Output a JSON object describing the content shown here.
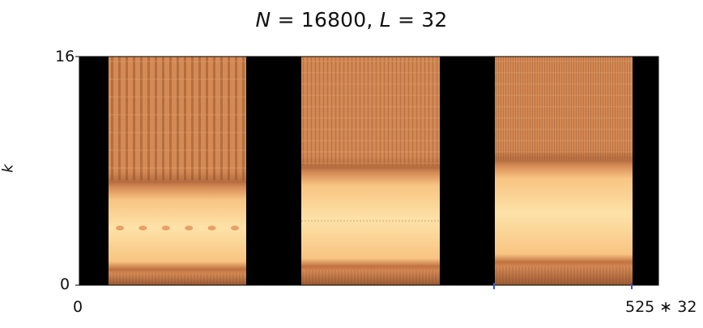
{
  "chart_data": {
    "type": "heatmap",
    "title": "N = 16800, L = 32",
    "title_parts": [
      {
        "text": "N",
        "italic": true
      },
      {
        "text": " = 16800, ",
        "italic": false
      },
      {
        "text": "L",
        "italic": true
      },
      {
        "text": " = 32",
        "italic": false
      }
    ],
    "xlabel": "",
    "ylabel": "k",
    "x_ticks": [
      "0",
      "525 ∗ 32"
    ],
    "y_ticks": [
      "0",
      "16"
    ],
    "xlim": [
      0,
      16800
    ],
    "ylim": [
      0,
      16
    ],
    "grid": false,
    "colormap": "copper",
    "panels": [
      {
        "band_low": 1,
        "band_high": 7,
        "column_texture_above": "coarse",
        "bright_spots_y": 4
      },
      {
        "band_low": 1.2,
        "band_high": 8,
        "column_texture_above": "fine",
        "bright_spots_y": 4.5
      },
      {
        "band_low": 1.5,
        "band_high": 8.5,
        "column_texture_above": "very-fine",
        "bright_spots_y": null
      }
    ]
  },
  "colors": {
    "background": "#000000",
    "copper_dark": "#9a5a33",
    "copper_mid": "#d58a55",
    "copper_light": "#f8c482",
    "copper_bright": "#fde2a8"
  }
}
